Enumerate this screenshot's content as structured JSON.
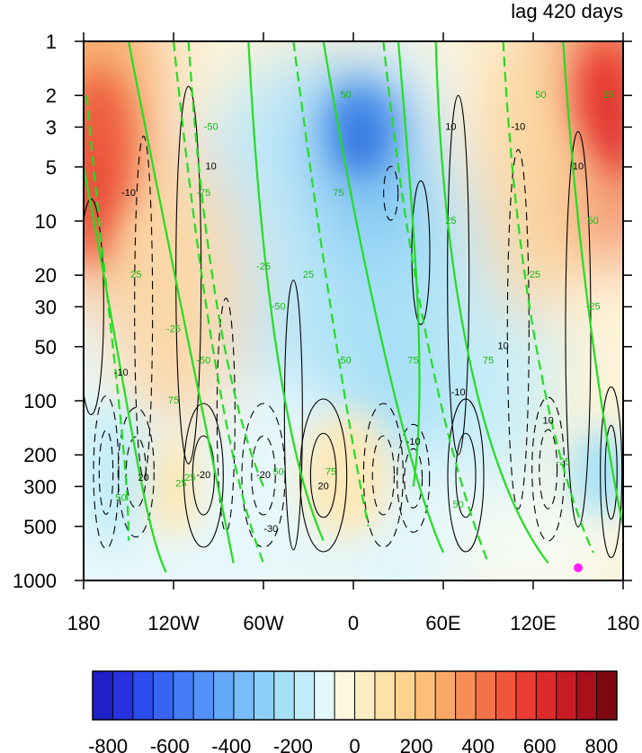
{
  "chart_data": {
    "type": "heatmap",
    "title": "lag 420 days",
    "x_axis": {
      "range": [
        -180,
        180
      ],
      "ticks": [
        {
          "value": -180,
          "label": "180"
        },
        {
          "value": -120,
          "label": "120W"
        },
        {
          "value": -60,
          "label": "60W"
        },
        {
          "value": 0,
          "label": "0"
        },
        {
          "value": 60,
          "label": "60E"
        },
        {
          "value": 120,
          "label": "120E"
        },
        {
          "value": 180,
          "label": "180"
        }
      ]
    },
    "y_axis": {
      "scale": "log",
      "reversed": true,
      "range": [
        1,
        1000
      ],
      "ticks": [
        {
          "value": 1,
          "label": "1"
        },
        {
          "value": 2,
          "label": "2"
        },
        {
          "value": 3,
          "label": "3"
        },
        {
          "value": 5,
          "label": "5"
        },
        {
          "value": 10,
          "label": "10"
        },
        {
          "value": 20,
          "label": "20"
        },
        {
          "value": 30,
          "label": "30"
        },
        {
          "value": 50,
          "label": "50"
        },
        {
          "value": 100,
          "label": "100"
        },
        {
          "value": 200,
          "label": "200"
        },
        {
          "value": 300,
          "label": "300"
        },
        {
          "value": 500,
          "label": "500"
        },
        {
          "value": 1000,
          "label": "1000"
        }
      ]
    },
    "colorbar": {
      "range": [
        -850,
        850
      ],
      "step": 50,
      "labels": [
        {
          "value": -800,
          "label": "-800"
        },
        {
          "value": -600,
          "label": "-600"
        },
        {
          "value": -400,
          "label": "-400"
        },
        {
          "value": -200,
          "label": "-200"
        },
        {
          "value": 0,
          "label": "0"
        },
        {
          "value": 200,
          "label": "200"
        },
        {
          "value": 400,
          "label": "400"
        },
        {
          "value": 600,
          "label": "600"
        },
        {
          "value": 800,
          "label": "800"
        }
      ],
      "colors": [
        "#2020c8",
        "#2632e0",
        "#2d4cf0",
        "#3764f4",
        "#437cf6",
        "#5292f8",
        "#64a8f8",
        "#78bcf8",
        "#8ed0f8",
        "#a6e0f8",
        "#c0ecfa",
        "#e2f8fc",
        "#fdf7de",
        "#fdedc2",
        "#fde2a8",
        "#fcd28e",
        "#fbbf7a",
        "#f9a868",
        "#f78e56",
        "#f47248",
        "#f0563c",
        "#ea3c32",
        "#dc2a2a",
        "#c81c24",
        "#a8101c",
        "#7e0812"
      ]
    },
    "contour_labels": {
      "black": [
        "-10",
        "10",
        "20",
        "-20",
        "-30"
      ],
      "green": [
        "25",
        "-25",
        "50",
        "-50",
        "75",
        "-75"
      ]
    },
    "marker": {
      "lon": 150,
      "p": 850,
      "color": "#ff22ff"
    },
    "line_colors": {
      "green": "#22dd22",
      "black": "#000000"
    }
  }
}
